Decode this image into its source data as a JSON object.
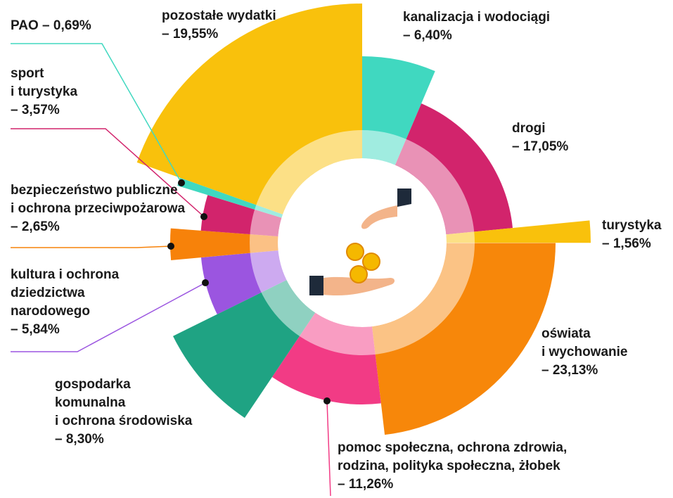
{
  "chart_data": {
    "type": "pie",
    "categories": [
      "kanalizacja i wodociągi",
      "drogi",
      "turystyka",
      "oświata\ni wychowanie",
      "pomoc społeczna, ochrona zdrowia,\nrodzina, polityka społeczna, żłobek",
      "gospodarka\nkomunalna\ni ochrona środowiska",
      "kultura i ochrona\ndziedzictwa\nnarodowego",
      "bezpieczeństwo publiczne\ni ochrona przeciwpożarowa",
      "sport\ni turystyka",
      "PAO",
      "pozostałe wydatki"
    ],
    "values": [
      6.4,
      17.05,
      1.56,
      23.13,
      11.26,
      8.3,
      5.84,
      2.65,
      3.57,
      0.69,
      19.55
    ],
    "value_labels": [
      "– 6,40%",
      "– 17,05%",
      "– 1,56%",
      "– 23,13%",
      "– 11,26%",
      "– 8,30%",
      "– 5,84%",
      "– 2,65%",
      "– 3,57%",
      "– 0,69%",
      "– 19,55%"
    ],
    "colors": [
      "#40d8c0",
      "#d2246c",
      "#f9c10c",
      "#f7870a",
      "#f23b85",
      "#1fa383",
      "#9b55e0",
      "#f7820a",
      "#d2246c",
      "#40d8c0",
      "#f9c10c"
    ]
  }
}
